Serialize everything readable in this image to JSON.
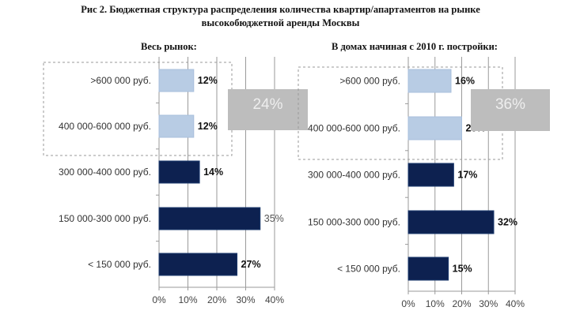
{
  "title_line1": "Рис 2. Бюджетная структура распределения количества квартир/апартаментов на рынке",
  "title_line2": "высокобюджетной аренды Москвы",
  "colors": {
    "light": "#b8cce4",
    "dark": "#0d2150",
    "grid": "#9a9a9a",
    "callout": "#bdbdbd"
  },
  "chart_data": [
    {
      "type": "bar",
      "orientation": "horizontal",
      "title": "Весь рынок:",
      "categories": [
        ">600 000 руб.",
        "400 000-600 000 руб.",
        "300 000-400 000 руб.",
        "150 000-300 000 руб.",
        "< 150 000 руб."
      ],
      "values": [
        12,
        12,
        14,
        35,
        27
      ],
      "labels": [
        "12%",
        "12%",
        "14%",
        "35%",
        "27%"
      ],
      "highlight": [
        true,
        true,
        false,
        false,
        false
      ],
      "xlim": [
        0,
        40
      ],
      "xticks": [
        "0%",
        "10%",
        "20%",
        "30%",
        "40%"
      ],
      "callout": "24%",
      "grid": true
    },
    {
      "type": "bar",
      "orientation": "horizontal",
      "title": "В домах начиная с 2010 г. постройки:",
      "categories": [
        ">600 000 руб.",
        "400 000-600 000 руб.",
        "300 000-400 000 руб.",
        "150 000-300 000 руб.",
        "< 150 000 руб."
      ],
      "values": [
        16,
        20,
        17,
        32,
        15
      ],
      "labels": [
        "16%",
        "20%",
        "17%",
        "32%",
        "15%"
      ],
      "highlight": [
        true,
        true,
        false,
        false,
        false
      ],
      "xlim": [
        0,
        40
      ],
      "xticks": [
        "0%",
        "10%",
        "20%",
        "30%",
        "40%"
      ],
      "callout": "36%",
      "grid": true
    }
  ]
}
